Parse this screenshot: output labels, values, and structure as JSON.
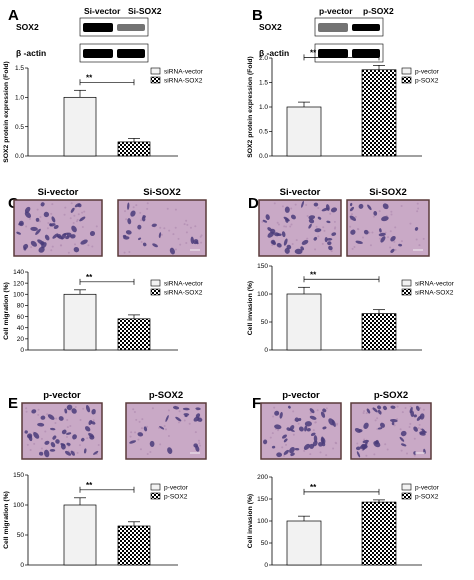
{
  "panels": [
    {
      "letter": "A",
      "top_type": "blot",
      "top_labels": [
        "Si-vector",
        "Si-SOX2"
      ],
      "row_labels": [
        "SOX2",
        "β -actin"
      ],
      "legend": [
        "siRNA-vector",
        "siRNA-SOX2"
      ],
      "significance": "**",
      "chart_data": {
        "type": "bar",
        "categories": [
          "siRNA-vector",
          "siRNA-SOX2"
        ],
        "values": [
          1.0,
          0.24
        ],
        "errors": [
          0.12,
          0.06
        ],
        "ylabel": "SOX2 protein expression (Fold)",
        "ylim": [
          0,
          1.5
        ],
        "yticks": [
          "0.0",
          "0.5",
          "1.0",
          "1.5"
        ]
      }
    },
    {
      "letter": "B",
      "top_type": "blot",
      "top_labels": [
        "p-vector",
        "p-SOX2"
      ],
      "row_labels": [
        "SOX2",
        "β -actin"
      ],
      "legend": [
        "p-vector",
        "p-SOX2"
      ],
      "significance": "**",
      "chart_data": {
        "type": "bar",
        "categories": [
          "p-vector",
          "p-SOX2"
        ],
        "values": [
          1.0,
          1.76
        ],
        "errors": [
          0.1,
          0.09
        ],
        "ylabel": "SOX2 protein expression (Fold)",
        "ylim": [
          0,
          2.0
        ],
        "yticks": [
          "0.0",
          "0.5",
          "1.0",
          "1.5",
          "2.0"
        ]
      }
    },
    {
      "letter": "C",
      "top_type": "micro",
      "top_labels": [
        "Si-vector",
        "Si-SOX2"
      ],
      "legend": [
        "siRNA-vector",
        "siRNA-SOX2"
      ],
      "significance": "**",
      "chart_data": {
        "type": "bar",
        "categories": [
          "siRNA-vector",
          "siRNA-SOX2"
        ],
        "values": [
          100,
          56
        ],
        "errors": [
          8,
          7
        ],
        "ylabel": "Cell migration (%)",
        "ylim": [
          0,
          140
        ],
        "yticks": [
          "0",
          "20",
          "40",
          "60",
          "80",
          "100",
          "120",
          "140"
        ]
      }
    },
    {
      "letter": "D",
      "top_type": "micro",
      "top_labels": [
        "Si-vector",
        "Si-SOX2"
      ],
      "legend": [
        "siRNA-vector",
        "siRNA-SOX2"
      ],
      "significance": "**",
      "chart_data": {
        "type": "bar",
        "categories": [
          "siRNA-vector",
          "siRNA-SOX2"
        ],
        "values": [
          100,
          65
        ],
        "errors": [
          12,
          7
        ],
        "ylabel": "Cell invasion (%)",
        "ylim": [
          0,
          150
        ],
        "yticks": [
          "0",
          "50",
          "100",
          "150"
        ]
      }
    },
    {
      "letter": "E",
      "top_type": "micro",
      "top_labels": [
        "p-vector",
        "p-SOX2"
      ],
      "legend": [
        "p-vector",
        "p-SOX2"
      ],
      "significance": "**",
      "chart_data": {
        "type": "bar",
        "categories": [
          "p-vector",
          "p-SOX2"
        ],
        "values": [
          100,
          65
        ],
        "errors": [
          12,
          7
        ],
        "ylabel": "Cell migration (%)",
        "ylim": [
          0,
          150
        ],
        "yticks": [
          "0",
          "50",
          "100",
          "150"
        ]
      }
    },
    {
      "letter": "F",
      "top_type": "micro",
      "top_labels": [
        "p-vector",
        "p-SOX2"
      ],
      "legend": [
        "p-vector",
        "p-SOX2"
      ],
      "significance": "**",
      "chart_data": {
        "type": "bar",
        "categories": [
          "p-vector",
          "p-SOX2"
        ],
        "values": [
          100,
          143
        ],
        "errors": [
          11,
          5
        ],
        "ylabel": "Cell invasion (%)",
        "ylim": [
          0,
          200
        ],
        "yticks": [
          "0",
          "50",
          "100",
          "150",
          "200"
        ]
      }
    }
  ],
  "colors": {
    "bar_fill_control": "#f2f2f2",
    "bar_pattern_treated": "checkerboard",
    "micro_background": "#c9a9c6",
    "micro_frame": "#5a3a3a",
    "cell_stain": "#4a3c7a"
  }
}
